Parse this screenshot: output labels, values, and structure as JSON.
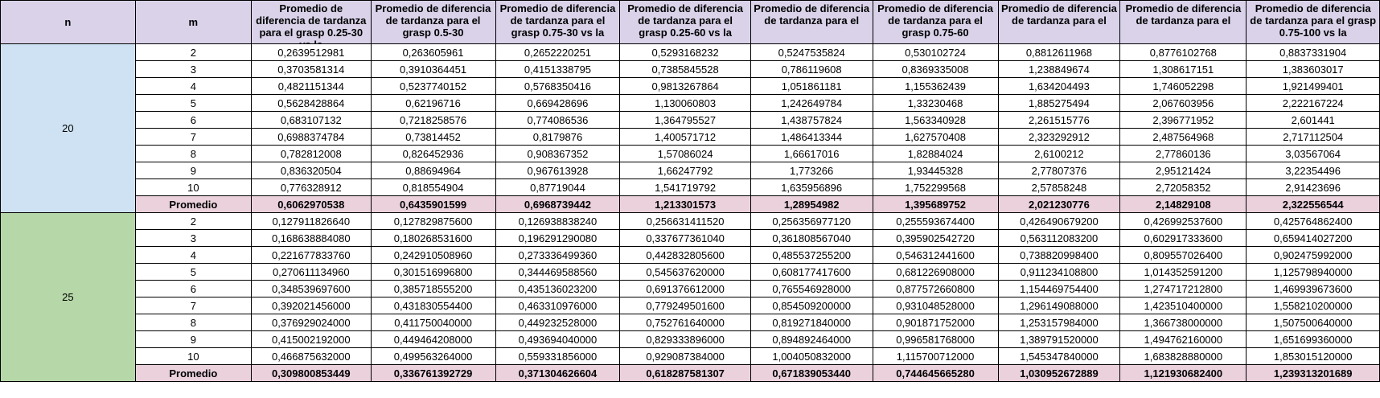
{
  "headers": {
    "n": "n",
    "m": "m",
    "cols": [
      "Promedio de diferencia de tardanza para el grasp 0.25-30 vs la",
      "Promedio de diferencia de tardanza para el grasp 0.5-30",
      "Promedio de diferencia de tardanza para el grasp 0.75-30 vs la",
      "Promedio de diferencia de tardanza para el grasp 0.25-60 vs la",
      "Promedio de diferencia de tardanza para el",
      "Promedio de diferencia de tardanza para el grasp 0.75-60",
      "Promedio de diferencia de tardanza para el",
      "Promedio de diferencia de tardanza para el",
      "Promedio de diferencia de tardanza para el grasp 0.75-100 vs la"
    ]
  },
  "groups": [
    {
      "n": "20",
      "rows": [
        {
          "m": "2",
          "values": [
            "0,2639512981",
            "0,263605961",
            "0,2652220251",
            "0,5293168232",
            "0,5247535824",
            "0,530102724",
            "0,8812611968",
            "0,8776102768",
            "0,8837331904"
          ]
        },
        {
          "m": "3",
          "values": [
            "0,3703581314",
            "0,3910364451",
            "0,4151338795",
            "0,7385845528",
            "0,786119608",
            "0,8369335008",
            "1,238849674",
            "1,308617151",
            "1,383603017"
          ]
        },
        {
          "m": "4",
          "values": [
            "0,4821151344",
            "0,5237740152",
            "0,5768350416",
            "0,9813267864",
            "1,051861181",
            "1,155362439",
            "1,634204493",
            "1,746052298",
            "1,921499401"
          ]
        },
        {
          "m": "5",
          "values": [
            "0,5628428864",
            "0,62196716",
            "0,669428696",
            "1,130060803",
            "1,242649784",
            "1,33230468",
            "1,885275494",
            "2,067603956",
            "2,222167224"
          ]
        },
        {
          "m": "6",
          "values": [
            "0,683107132",
            "0,7218258576",
            "0,774086536",
            "1,364795527",
            "1,438757824",
            "1,563340928",
            "2,261515776",
            "2,396771952",
            "2,601441"
          ]
        },
        {
          "m": "7",
          "values": [
            "0,6988374784",
            "0,73814452",
            "0,8179876",
            "1,400571712",
            "1,486413344",
            "1,627570408",
            "2,323292912",
            "2,487564968",
            "2,717112504"
          ]
        },
        {
          "m": "8",
          "values": [
            "0,782812008",
            "0,826452936",
            "0,908367352",
            "1,57086024",
            "1,66617016",
            "1,82884024",
            "2,6100212",
            "2,77860136",
            "3,03567064"
          ]
        },
        {
          "m": "9",
          "values": [
            "0,836320504",
            "0,88694964",
            "0,967613928",
            "1,66247792",
            "1,773266",
            "1,93445328",
            "2,77807376",
            "2,95121424",
            "3,22354496"
          ]
        },
        {
          "m": "10",
          "values": [
            "0,776328912",
            "0,818554904",
            "0,87719044",
            "1,541719792",
            "1,635956896",
            "1,752299568",
            "2,57858248",
            "2,72058352",
            "2,91423696"
          ]
        }
      ],
      "avg_label": "Promedio",
      "avg_values": [
        "0,6062970538",
        "0,6435901599",
        "0,6968739442",
        "1,213301573",
        "1,28954982",
        "1,395689752",
        "2,021230776",
        "2,14829108",
        "2,322556544"
      ]
    },
    {
      "n": "25",
      "rows": [
        {
          "m": "2",
          "values": [
            "0,127911826640",
            "0,127829875600",
            "0,126938838240",
            "0,256631411520",
            "0,256356977120",
            "0,255593674400",
            "0,426490679200",
            "0,426992537600",
            "0,425764862400"
          ]
        },
        {
          "m": "3",
          "values": [
            "0,168638884080",
            "0,180268531600",
            "0,196291290080",
            "0,337677361040",
            "0,361808567040",
            "0,395902542720",
            "0,563112083200",
            "0,602917333600",
            "0,659414027200"
          ]
        },
        {
          "m": "4",
          "values": [
            "0,221677833760",
            "0,242910508960",
            "0,273336499360",
            "0,442832805600",
            "0,485537255200",
            "0,546312441600",
            "0,738820998400",
            "0,809557026400",
            "0,902475992000"
          ]
        },
        {
          "m": "5",
          "values": [
            "0,270611134960",
            "0,301516996800",
            "0,344469588560",
            "0,545637620000",
            "0,608177417600",
            "0,681226908000",
            "0,911234108800",
            "1,014352591200",
            "1,125798940000"
          ]
        },
        {
          "m": "6",
          "values": [
            "0,348539697600",
            "0,385718555200",
            "0,435136023200",
            "0,691376612000",
            "0,765546928000",
            "0,877572660800",
            "1,154469754400",
            "1,274717212800",
            "1,469939673600"
          ]
        },
        {
          "m": "7",
          "values": [
            "0,392021456000",
            "0,431830554400",
            "0,463310976000",
            "0,779249501600",
            "0,854509200000",
            "0,931048528000",
            "1,296149088000",
            "1,423510400000",
            "1,558210200000"
          ]
        },
        {
          "m": "8",
          "values": [
            "0,376929024000",
            "0,411750040000",
            "0,449232528000",
            "0,752761640000",
            "0,819271840000",
            "0,901871752000",
            "1,253157984000",
            "1,366738000000",
            "1,507500640000"
          ]
        },
        {
          "m": "9",
          "values": [
            "0,415002192000",
            "0,449464208000",
            "0,493694040000",
            "0,829333896000",
            "0,894892464000",
            "0,996581768000",
            "1,389791520000",
            "1,494762160000",
            "1,651699360000"
          ]
        },
        {
          "m": "10",
          "values": [
            "0,466875632000",
            "0,499563264000",
            "0,559331856000",
            "0,929087384000",
            "1,004050832000",
            "1,115700712000",
            "1,545347840000",
            "1,683828880000",
            "1,853015120000"
          ]
        }
      ],
      "avg_label": "Promedio",
      "avg_values": [
        "0,309800853449",
        "0,336761392729",
        "0,371304626604",
        "0,618287581307",
        "0,671839053440",
        "0,744645665280",
        "1,030952672889",
        "1,121930682400",
        "1,239313201689"
      ]
    }
  ]
}
